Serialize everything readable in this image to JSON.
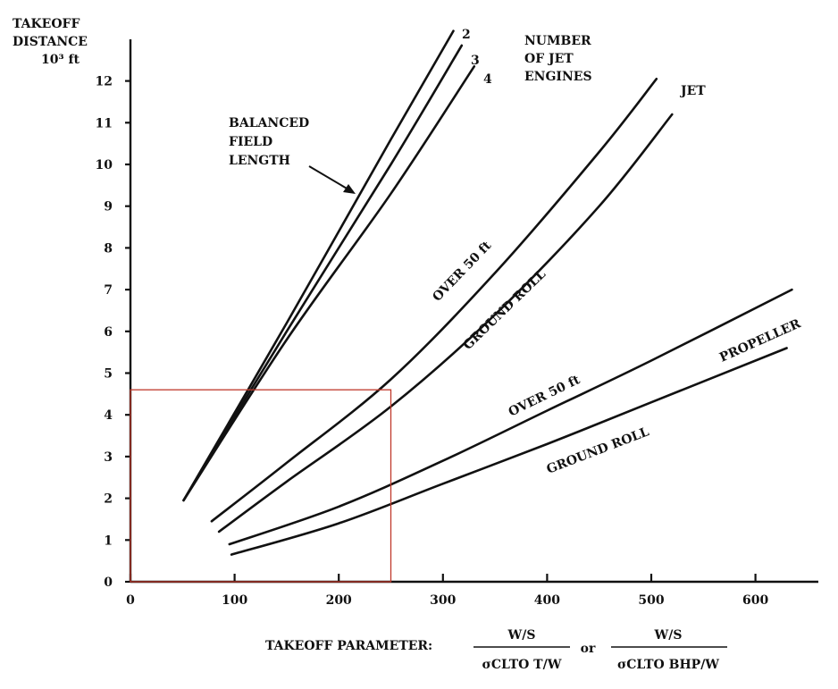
{
  "chart_data": {
    "type": "line",
    "ylabel_lines": [
      "TAKEOFF",
      "DISTANCE"
    ],
    "ylabel_unit": "10³ ft",
    "xlabel_prefix": "TAKEOFF PARAMETER:",
    "xlabel_frac1_num": "W/S",
    "xlabel_frac1_den": "σCLTO T/W",
    "xlabel_or": "or",
    "xlabel_frac2_num": "W/S",
    "xlabel_frac2_den": "σCLTO BHP/W",
    "xlim": [
      0,
      660
    ],
    "ylim": [
      0,
      13
    ],
    "x_ticks": [
      "0",
      "100",
      "200",
      "300",
      "400",
      "500",
      "600"
    ],
    "x_tick_values": [
      0,
      100,
      200,
      300,
      400,
      500,
      600
    ],
    "y_ticks": [
      "0",
      "1",
      "2",
      "3",
      "4",
      "5",
      "6",
      "7",
      "8",
      "9",
      "10",
      "11",
      "12"
    ],
    "y_tick_values": [
      0,
      1,
      2,
      3,
      4,
      5,
      6,
      7,
      8,
      9,
      10,
      11,
      12
    ],
    "grid": false,
    "series": [
      {
        "name": "2",
        "group": "balanced field length",
        "x": [
          51,
          150,
          250,
          310
        ],
        "y": [
          1.95,
          6.2,
          10.6,
          13.2
        ]
      },
      {
        "name": "3",
        "group": "balanced field length",
        "x": [
          51,
          150,
          250,
          318
        ],
        "y": [
          1.95,
          6.0,
          10.0,
          12.85
        ]
      },
      {
        "name": "4",
        "group": "balanced field length",
        "x": [
          51,
          150,
          250,
          330
        ],
        "y": [
          1.95,
          5.8,
          9.3,
          12.35
        ]
      },
      {
        "name": "OVER 50 ft",
        "group": "jet",
        "x": [
          78,
          150,
          250,
          350,
          450,
          505
        ],
        "y": [
          1.45,
          2.85,
          4.85,
          7.4,
          10.3,
          12.05
        ]
      },
      {
        "name": "GROUND ROLL",
        "group": "jet",
        "x": [
          85,
          150,
          250,
          350,
          450,
          520
        ],
        "y": [
          1.2,
          2.4,
          4.2,
          6.4,
          9.0,
          11.2
        ]
      },
      {
        "name": "OVER 50 ft",
        "group": "propeller",
        "x": [
          95,
          200,
          300,
          400,
          500,
          635
        ],
        "y": [
          0.9,
          1.8,
          2.9,
          4.1,
          5.3,
          7.0
        ]
      },
      {
        "name": "GROUND ROLL",
        "group": "propeller",
        "x": [
          97,
          200,
          300,
          400,
          500,
          630
        ],
        "y": [
          0.65,
          1.4,
          2.35,
          3.3,
          4.3,
          5.6
        ]
      }
    ],
    "annotations": {
      "num_engines": [
        "NUMBER",
        "OF JET",
        "ENGINES"
      ],
      "bfl": [
        "BALANCED",
        "FIELD",
        "LENGTH"
      ],
      "engine_2": "2",
      "engine_3": "3",
      "engine_4": "4",
      "jet": "JET",
      "jet_over": "OVER 50 ft",
      "jet_ground": "GROUND ROLL",
      "prop": "PROPELLER",
      "prop_over": "OVER 50 ft",
      "prop_ground": "GROUND ROLL"
    },
    "highlight_region": {
      "x": [
        0,
        250
      ],
      "y": [
        0,
        4.6
      ],
      "color": "#c0392b"
    }
  }
}
